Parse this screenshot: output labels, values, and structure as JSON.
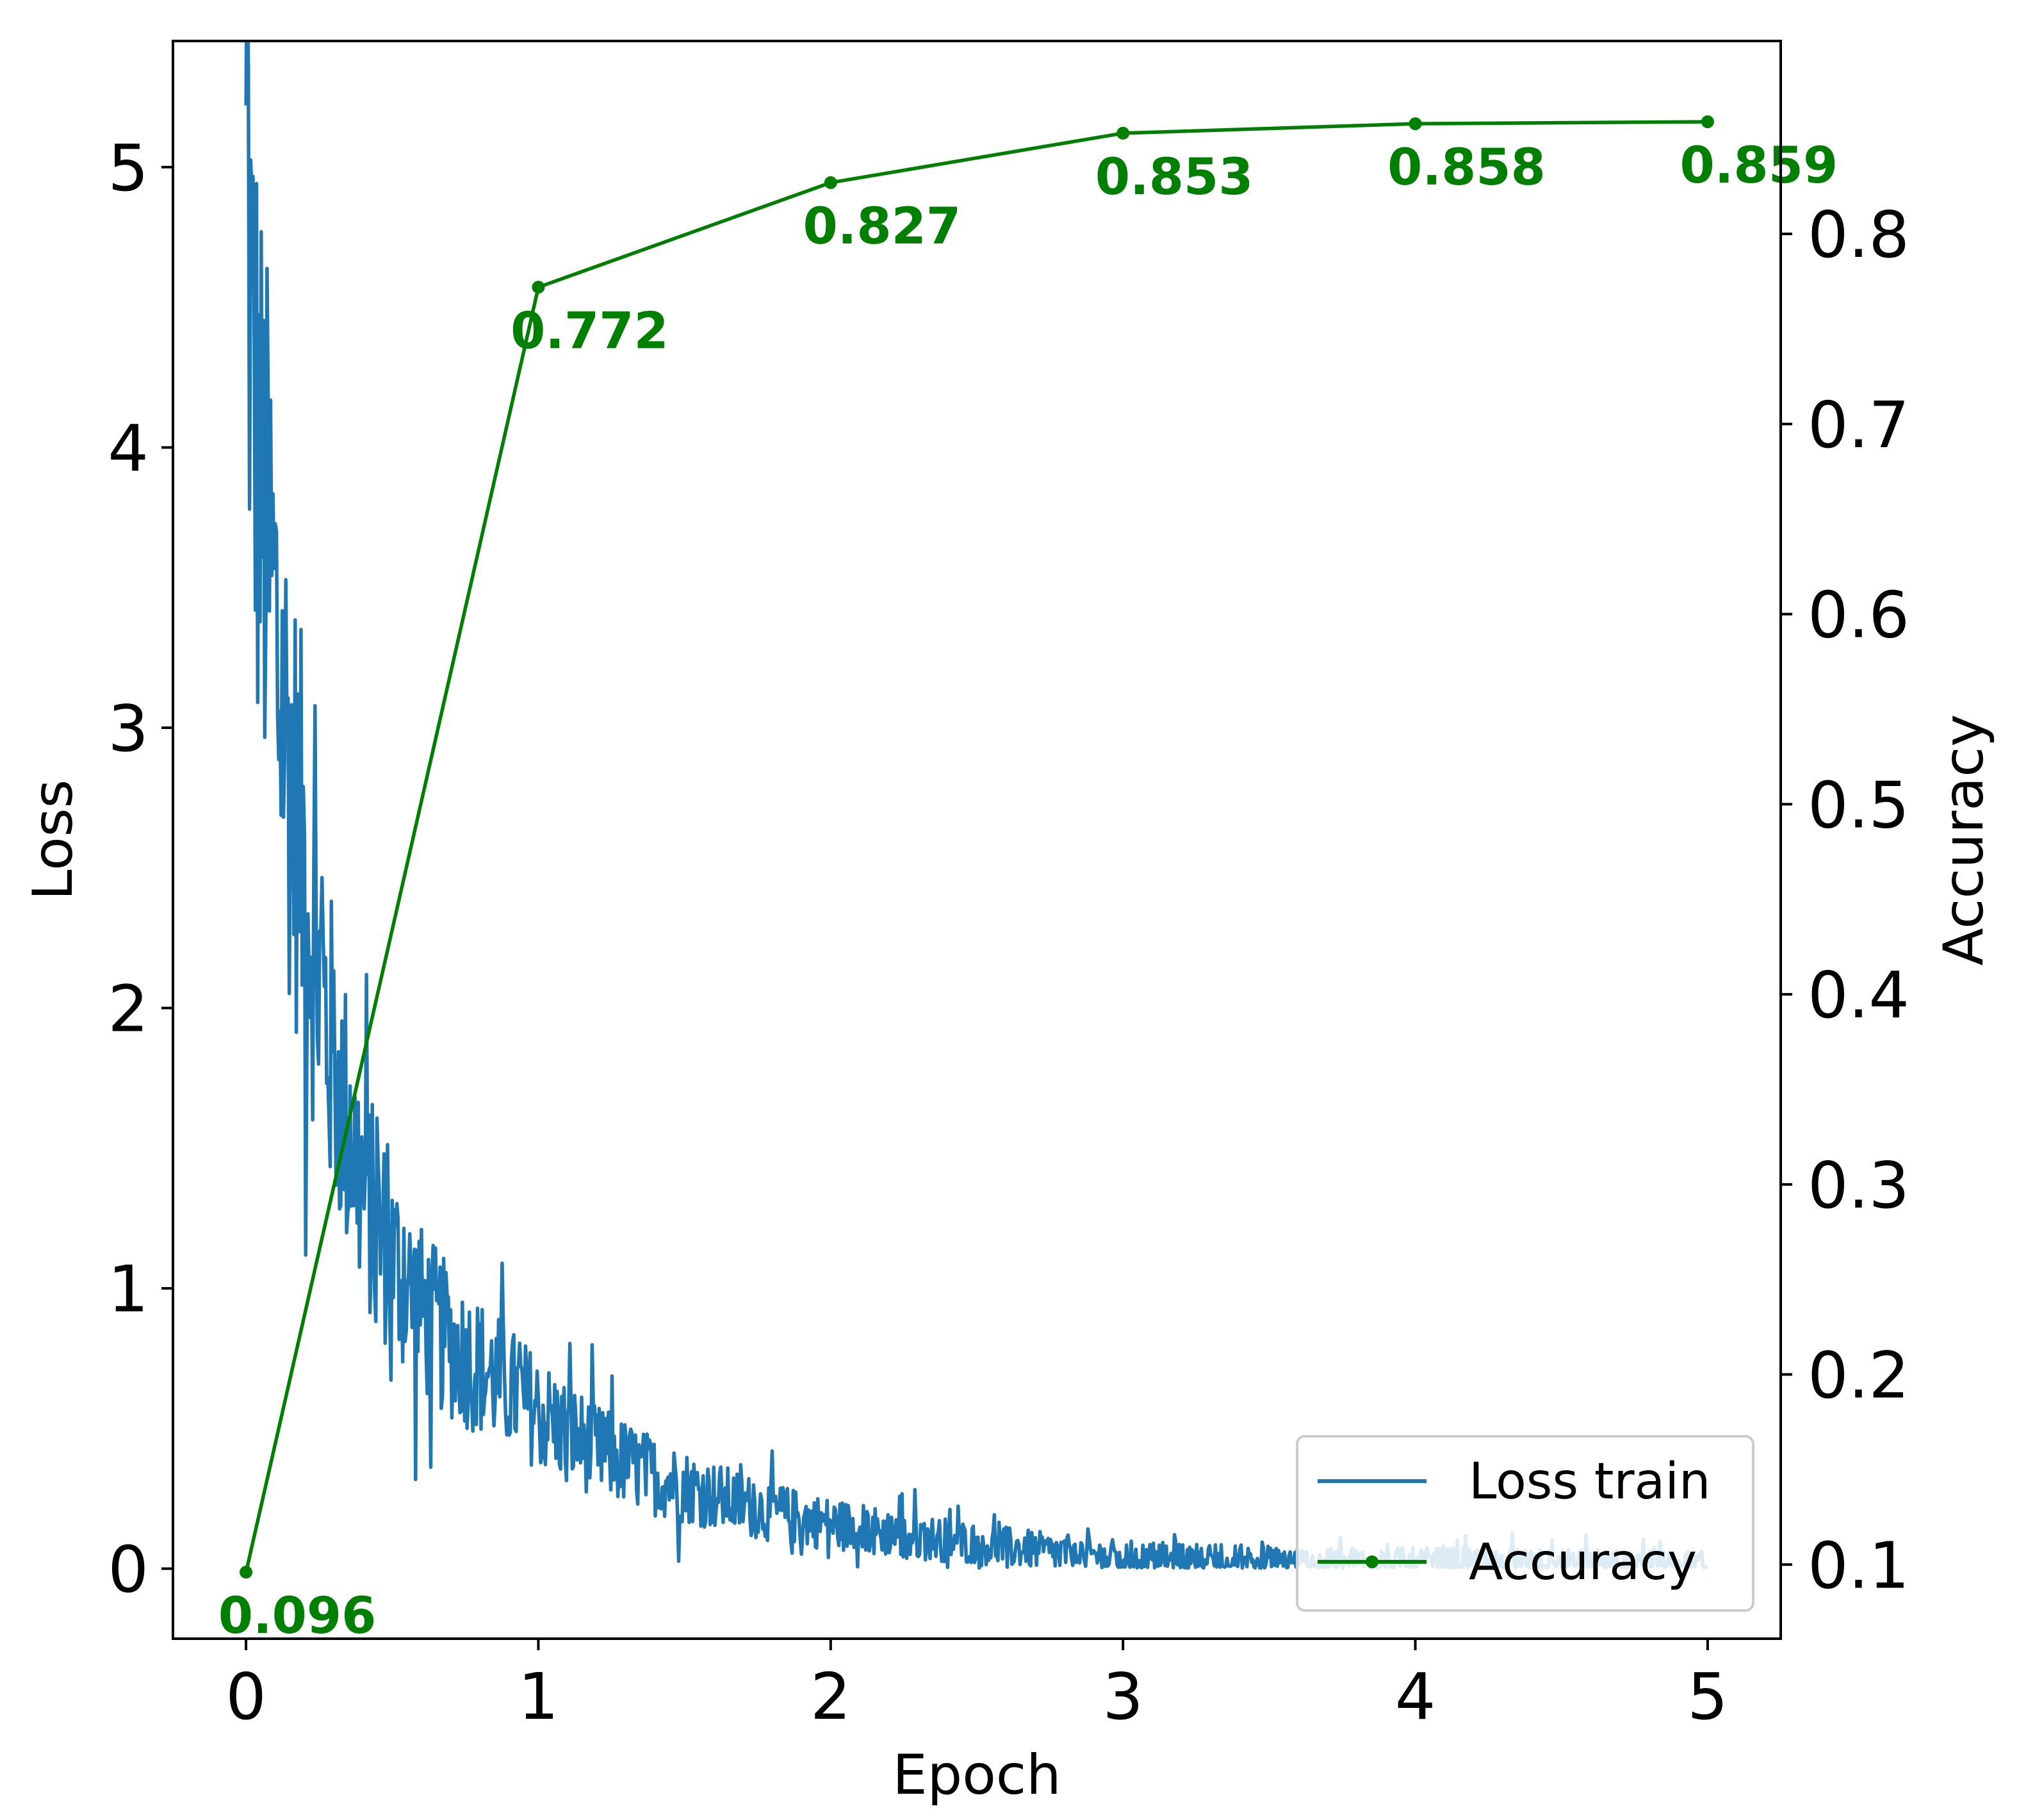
{
  "chart_data": {
    "type": "line",
    "xlabel": "Epoch",
    "ylabel_left": "Loss",
    "ylabel_right": "Accuracy",
    "xlim": [
      -0.25,
      5.25
    ],
    "ylim_left": [
      -0.25,
      5.45
    ],
    "ylim_right": [
      0.061,
      0.9015
    ],
    "x_ticks": [
      0,
      1,
      2,
      3,
      4,
      5
    ],
    "y_left_ticks": [
      0,
      1,
      2,
      3,
      4,
      5
    ],
    "y_right_ticks": [
      0.1,
      0.2,
      0.3,
      0.4,
      0.5,
      0.6,
      0.7,
      0.8
    ],
    "grid": false,
    "legend_position": "bottom-right",
    "series": [
      {
        "name": "Loss train",
        "color": "#1f77b4",
        "axis": "left",
        "noisy_trend": {
          "x": [
            0,
            0.02,
            0.05,
            0.1,
            0.15,
            0.2,
            0.25,
            0.3,
            0.4,
            0.5,
            0.6,
            0.7,
            0.8,
            1.0,
            1.2,
            1.4,
            1.6,
            1.8,
            2.0,
            2.25,
            2.5,
            2.75,
            3.0,
            3.5,
            4.0,
            4.5,
            5.0
          ],
          "y": [
            5.22,
            4.3,
            3.85,
            3.35,
            2.85,
            2.5,
            2.1,
            1.8,
            1.35,
            1.1,
            0.92,
            0.8,
            0.72,
            0.56,
            0.42,
            0.33,
            0.26,
            0.2,
            0.16,
            0.12,
            0.09,
            0.06,
            0.04,
            0.025,
            0.02,
            0.015,
            0.01
          ]
        }
      },
      {
        "name": "Accuracy",
        "color": "#008000",
        "axis": "right",
        "marker": "o",
        "x": [
          0,
          1,
          2,
          3,
          4,
          5
        ],
        "y": [
          0.096,
          0.772,
          0.827,
          0.853,
          0.858,
          0.859
        ]
      }
    ],
    "data_labels": [
      "0.096",
      "0.772",
      "0.827",
      "0.853",
      "0.858",
      "0.859"
    ]
  }
}
